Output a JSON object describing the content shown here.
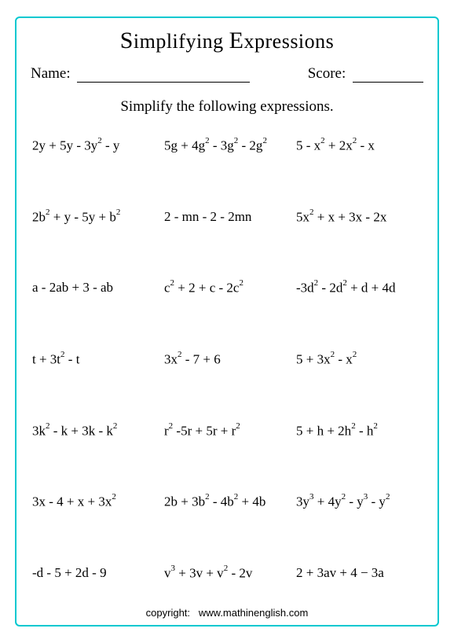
{
  "title_part1": "S",
  "title_part2": "implifying ",
  "title_part3": "E",
  "title_part4": "xpressions",
  "name_label": "Name:",
  "score_label": "Score:",
  "instruction": "Simplify the following expressions.",
  "expressions": [
    [
      "2y + 5y - 3y^2 - y",
      "5g + 4g^2 - 3g^2 - 2g^2",
      "5 - x^2 + 2x^2 - x"
    ],
    [
      "2b^2 + y - 5y + b^2",
      "2 - mn - 2 - 2mn",
      "5x^2 + x + 3x - 2x"
    ],
    [
      "a - 2ab + 3 - ab",
      "c^2 + 2 + c - 2c^2",
      "-3d^2 - 2d^2 + d + 4d"
    ],
    [
      "t + 3t^2 - t",
      "3x^2 - 7 + 6",
      "5 + 3x^2 - x^2"
    ],
    [
      "3k^2 - k + 3k - k^2",
      "r^2 -5r + 5r + r^2",
      "5 + h + 2h^2 - h^2"
    ],
    [
      "3x - 4 + x + 3x^2",
      "2b + 3b^2 - 4b^2 + 4b",
      "3y^3 + 4y^2 - y^3 - y^2"
    ],
    [
      "-d - 5 + 2d - 9",
      "v^3 + 3v + v^2 - 2v",
      "2 + 3av + 4 − 3a"
    ]
  ],
  "footer_label": "copyright:",
  "footer_site": "www.mathinenglish.com",
  "colors": {
    "border": "#00c8d0",
    "text": "#000000",
    "background": "#ffffff"
  },
  "fontsize": {
    "title": 26,
    "meta": 19,
    "instruction": 19,
    "expression": 17,
    "footer": 13
  },
  "grid": {
    "rows": 7,
    "cols": 3
  }
}
